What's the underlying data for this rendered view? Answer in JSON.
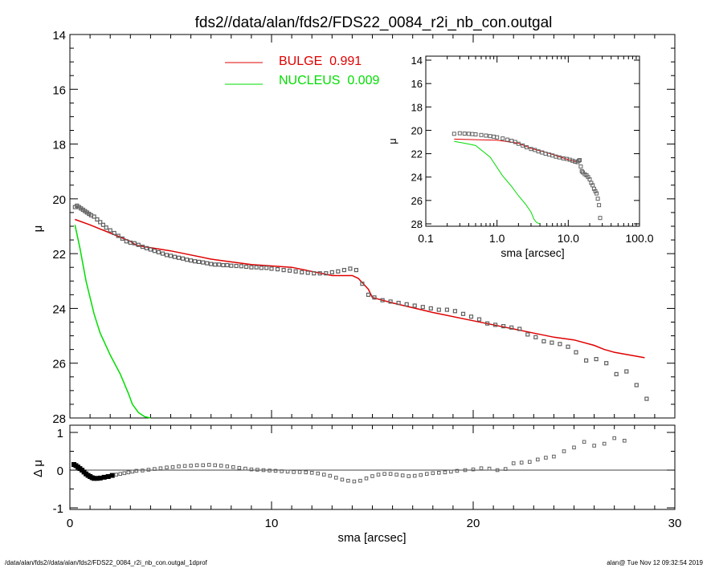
{
  "title": "fds2//data/alan/fds2/FDS22_0084_r2i_nb_con.outgal",
  "footer": {
    "left": "/data/alan/fds2//data/alan/fds2/FDS22_0084_r2i_nb_con.outgal_1dprof",
    "right": "alan@  Tue Nov 12 09:32:54 2019"
  },
  "colors": {
    "bulge": "#e00000",
    "nucleus": "#00dd00",
    "data": "#606060",
    "axes": "#000000"
  },
  "chart_data": [
    {
      "type": "line",
      "name": "main-profile",
      "xlabel": "",
      "ylabel": "μ",
      "xlim": [
        0,
        30
      ],
      "ylim": [
        28,
        14
      ],
      "yticks": [
        14,
        16,
        18,
        20,
        22,
        24,
        26,
        28
      ],
      "legend": {
        "placement": "top-center",
        "entries": [
          {
            "label": "BULGE  0.991",
            "color": "#e00000"
          },
          {
            "label": "NUCLEUS  0.009",
            "color": "#00dd00"
          }
        ]
      },
      "series": [
        {
          "name": "BULGE",
          "color": "#e00000",
          "kind": "line",
          "x": [
            0.25,
            1,
            2,
            3,
            3.3,
            5,
            7,
            7.5,
            9,
            11,
            12,
            13,
            14,
            14.3,
            14.8,
            15,
            16,
            18,
            20,
            22,
            23,
            24,
            25,
            26,
            26.5,
            27,
            28.5
          ],
          "y": [
            20.75,
            20.95,
            21.25,
            21.55,
            21.7,
            21.9,
            22.2,
            22.25,
            22.4,
            22.5,
            22.65,
            22.8,
            22.8,
            22.9,
            23.3,
            23.6,
            23.8,
            24.15,
            24.45,
            24.75,
            24.9,
            25.05,
            25.15,
            25.35,
            25.5,
            25.6,
            25.8
          ]
        },
        {
          "name": "NUCLEUS",
          "color": "#00dd00",
          "kind": "line",
          "x": [
            0.25,
            0.5,
            0.8,
            1.2,
            1.5,
            2.0,
            2.5,
            2.9,
            3.1,
            3.4,
            3.7,
            4.0
          ],
          "y": [
            20.95,
            21.8,
            23.0,
            24.2,
            24.9,
            25.7,
            26.4,
            27.1,
            27.5,
            27.8,
            27.95,
            28.0
          ]
        },
        {
          "name": "data",
          "color": "#606060",
          "kind": "points",
          "x": [
            0.25,
            0.35,
            0.45,
            0.55,
            0.65,
            0.75,
            0.85,
            0.95,
            1.05,
            1.2,
            1.35,
            1.5,
            1.65,
            1.8,
            2.0,
            2.2,
            2.4,
            2.6,
            2.8,
            3.0,
            3.2,
            3.4,
            3.6,
            3.8,
            4.0,
            4.2,
            4.4,
            4.6,
            4.8,
            5.0,
            5.2,
            5.4,
            5.6,
            5.8,
            6.0,
            6.2,
            6.4,
            6.6,
            6.8,
            7.0,
            7.2,
            7.4,
            7.6,
            7.8,
            8.0,
            8.25,
            8.5,
            8.75,
            9.0,
            9.25,
            9.5,
            9.75,
            10.0,
            10.3,
            10.6,
            10.9,
            11.2,
            11.5,
            11.8,
            12.1,
            12.4,
            12.7,
            13.0,
            13.3,
            13.6,
            13.9,
            14.2,
            14.5,
            14.8,
            15.1,
            15.5,
            15.9,
            16.3,
            16.7,
            17.1,
            17.5,
            17.9,
            18.3,
            18.7,
            19.1,
            19.5,
            19.9,
            20.3,
            20.7,
            21.1,
            21.5,
            21.9,
            22.3,
            22.7,
            23.1,
            23.5,
            23.9,
            24.3,
            24.7,
            25.1,
            25.6,
            26.1,
            26.6,
            27.1,
            27.6,
            28.1,
            28.6
          ],
          "y": [
            20.3,
            20.25,
            20.3,
            20.35,
            20.4,
            20.45,
            20.5,
            20.55,
            20.6,
            20.65,
            20.75,
            20.85,
            20.95,
            21.05,
            21.15,
            21.25,
            21.35,
            21.45,
            21.55,
            21.6,
            21.62,
            21.68,
            21.75,
            21.8,
            21.85,
            21.9,
            21.95,
            22.0,
            22.05,
            22.08,
            22.12,
            22.15,
            22.18,
            22.22,
            22.25,
            22.28,
            22.3,
            22.32,
            22.35,
            22.38,
            22.4,
            22.4,
            22.42,
            22.42,
            22.44,
            22.45,
            22.46,
            22.48,
            22.5,
            22.5,
            22.52,
            22.52,
            22.55,
            22.57,
            22.6,
            22.62,
            22.65,
            22.68,
            22.7,
            22.72,
            22.72,
            22.72,
            22.68,
            22.65,
            22.6,
            22.55,
            22.6,
            23.1,
            23.5,
            23.6,
            23.7,
            23.75,
            23.8,
            23.85,
            23.9,
            23.95,
            24.0,
            24.05,
            24.05,
            24.1,
            24.2,
            24.3,
            24.4,
            24.55,
            24.6,
            24.65,
            24.7,
            24.75,
            24.95,
            25.05,
            25.2,
            25.25,
            25.3,
            25.4,
            25.6,
            25.9,
            25.85,
            26.0,
            26.4,
            26.3,
            26.8,
            27.3
          ]
        }
      ]
    },
    {
      "type": "scatter",
      "name": "residuals",
      "xlabel": "sma [arcsec]",
      "ylabel": "Δ μ",
      "xlim": [
        0,
        30
      ],
      "ylim": [
        -1,
        1
      ],
      "xticks": [
        0,
        10,
        20,
        30
      ],
      "yticks": [
        -1,
        0,
        1
      ],
      "series": [
        {
          "name": "residual",
          "color": "#606060",
          "x": [
            0.2,
            0.3,
            0.4,
            0.5,
            0.6,
            0.7,
            0.8,
            0.9,
            1.0,
            1.1,
            1.2,
            1.35,
            1.5,
            1.7,
            1.9,
            2.1,
            2.3,
            2.5,
            2.7,
            2.9,
            3.1,
            3.3,
            3.6,
            3.9,
            4.2,
            4.5,
            4.8,
            5.1,
            5.4,
            5.7,
            6.0,
            6.3,
            6.6,
            6.9,
            7.2,
            7.5,
            7.8,
            8.1,
            8.4,
            8.7,
            9.0,
            9.3,
            9.6,
            9.9,
            10.2,
            10.5,
            10.8,
            11.1,
            11.4,
            11.7,
            12.0,
            12.3,
            12.6,
            12.9,
            13.2,
            13.5,
            13.8,
            14.1,
            14.4,
            14.7,
            15.0,
            15.3,
            15.6,
            15.9,
            16.2,
            16.5,
            16.8,
            17.1,
            17.4,
            17.7,
            18.0,
            18.3,
            18.6,
            18.9,
            19.2,
            19.6,
            20.0,
            20.4,
            20.8,
            21.2,
            21.6,
            22.0,
            22.4,
            22.8,
            23.2,
            23.6,
            24.0,
            24.5,
            25.0,
            25.5,
            26.0,
            26.5,
            27.0,
            27.5
          ],
          "y": [
            0.15,
            0.12,
            0.08,
            0.04,
            0.0,
            -0.05,
            -0.1,
            -0.14,
            -0.17,
            -0.2,
            -0.22,
            -0.22,
            -0.21,
            -0.19,
            -0.17,
            -0.14,
            -0.12,
            -0.1,
            -0.08,
            -0.06,
            -0.04,
            -0.02,
            -0.01,
            0.01,
            0.03,
            0.05,
            0.07,
            0.08,
            0.1,
            0.11,
            0.12,
            0.13,
            0.13,
            0.14,
            0.13,
            0.12,
            0.1,
            0.08,
            0.06,
            0.04,
            0.02,
            0.01,
            0.0,
            -0.01,
            -0.02,
            -0.03,
            -0.04,
            -0.05,
            -0.05,
            -0.06,
            -0.07,
            -0.09,
            -0.12,
            -0.15,
            -0.2,
            -0.25,
            -0.28,
            -0.3,
            -0.28,
            -0.22,
            -0.16,
            -0.12,
            -0.1,
            -0.1,
            -0.12,
            -0.14,
            -0.16,
            -0.15,
            -0.13,
            -0.1,
            -0.08,
            -0.07,
            -0.06,
            -0.04,
            -0.02,
            0.0,
            0.02,
            0.05,
            0.04,
            0.0,
            0.03,
            0.18,
            0.2,
            0.22,
            0.28,
            0.33,
            0.36,
            0.5,
            0.6,
            0.75,
            0.65,
            0.7,
            0.85,
            0.78
          ]
        }
      ]
    },
    {
      "type": "line",
      "name": "inset-profile",
      "xlabel": "sma [arcsec]",
      "ylabel": "μ",
      "xscale": "log",
      "xlim": [
        0.1,
        100
      ],
      "ylim": [
        28,
        14
      ],
      "xticklabels": [
        "0.1",
        "1.0",
        "10.0",
        "100.0"
      ],
      "yticks": [
        14,
        16,
        18,
        20,
        22,
        24,
        26,
        28
      ],
      "series": [
        {
          "name": "BULGE",
          "color": "#e00000",
          "kind": "line",
          "x": [
            0.25,
            0.5,
            1.0,
            2.0,
            3.0,
            5.0,
            7.0,
            10.0,
            13.0
          ],
          "y": [
            20.75,
            20.8,
            20.85,
            21.1,
            21.55,
            21.9,
            22.2,
            22.5,
            22.7
          ]
        },
        {
          "name": "NUCLEUS",
          "color": "#00dd00",
          "kind": "line",
          "x": [
            0.25,
            0.35,
            0.5,
            0.8,
            1.2,
            1.6,
            2.0,
            2.5,
            3.0,
            3.3,
            3.6,
            4.0
          ],
          "y": [
            20.95,
            21.1,
            21.3,
            22.3,
            23.9,
            24.8,
            25.6,
            26.3,
            27.0,
            27.6,
            27.9,
            28.0
          ]
        },
        {
          "name": "data",
          "color": "#606060",
          "kind": "points",
          "x": [
            0.25,
            0.3,
            0.35,
            0.4,
            0.45,
            0.5,
            0.6,
            0.7,
            0.8,
            0.9,
            1.0,
            1.2,
            1.4,
            1.6,
            1.8,
            2.0,
            2.3,
            2.6,
            3.0,
            3.4,
            3.8,
            4.3,
            4.8,
            5.4,
            6.0,
            6.7,
            7.5,
            8.5,
            9.5,
            10.5,
            11.5,
            12.5,
            13.5,
            14.0,
            14.5,
            15.0,
            15.5,
            16.0,
            17.0,
            18.0,
            19.0,
            20.0,
            21.0,
            22.0,
            23.0,
            24.0,
            25.0,
            26.0,
            27.0,
            28.0
          ],
          "y": [
            20.3,
            20.25,
            20.28,
            20.3,
            20.32,
            20.35,
            20.4,
            20.45,
            20.5,
            20.55,
            20.6,
            20.7,
            20.8,
            20.9,
            21.0,
            21.15,
            21.3,
            21.45,
            21.6,
            21.68,
            21.8,
            21.9,
            22.0,
            22.08,
            22.15,
            22.25,
            22.32,
            22.4,
            22.45,
            22.52,
            22.6,
            22.68,
            22.72,
            22.6,
            22.55,
            23.1,
            23.5,
            23.6,
            23.75,
            23.85,
            24.0,
            24.2,
            24.5,
            24.7,
            25.0,
            25.2,
            25.4,
            25.85,
            26.4,
            27.5
          ]
        }
      ]
    }
  ]
}
